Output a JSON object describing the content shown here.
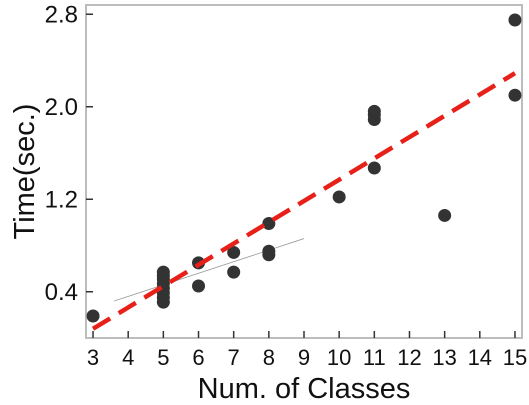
{
  "chart_data": {
    "type": "scatter",
    "title": "",
    "xlabel": "Num. of Classes",
    "ylabel": "Time(sec.)",
    "xlim": [
      2.8,
      15.2
    ],
    "ylim": [
      0.0,
      2.88
    ],
    "xticks": [
      3,
      4,
      5,
      6,
      7,
      8,
      9,
      10,
      11,
      12,
      13,
      14,
      15
    ],
    "yticks": [
      0.4,
      1.2,
      2.0,
      2.8
    ],
    "ytick_labels": [
      "0.4",
      "1.2",
      "2.0",
      "2.8"
    ],
    "grid": false,
    "legend": "none",
    "points": [
      {
        "x": 3,
        "y": 0.19
      },
      {
        "x": 5,
        "y": 0.31
      },
      {
        "x": 5,
        "y": 0.35
      },
      {
        "x": 5,
        "y": 0.39
      },
      {
        "x": 5,
        "y": 0.43
      },
      {
        "x": 5,
        "y": 0.47
      },
      {
        "x": 5,
        "y": 0.51
      },
      {
        "x": 5,
        "y": 0.54
      },
      {
        "x": 5,
        "y": 0.57
      },
      {
        "x": 6,
        "y": 0.45
      },
      {
        "x": 6,
        "y": 0.65
      },
      {
        "x": 7,
        "y": 0.57
      },
      {
        "x": 7,
        "y": 0.74
      },
      {
        "x": 8,
        "y": 0.72
      },
      {
        "x": 8,
        "y": 0.75
      },
      {
        "x": 8,
        "y": 0.99
      },
      {
        "x": 10,
        "y": 1.22
      },
      {
        "x": 11,
        "y": 1.47
      },
      {
        "x": 11,
        "y": 1.89
      },
      {
        "x": 11,
        "y": 1.93
      },
      {
        "x": 11,
        "y": 1.96
      },
      {
        "x": 13,
        "y": 1.06
      },
      {
        "x": 15,
        "y": 2.1
      },
      {
        "x": 15,
        "y": 2.75
      }
    ],
    "fit_line": {
      "x": [
        3,
        15
      ],
      "y": [
        0.08,
        2.29
      ],
      "style": "dashed",
      "color": "#e8201a"
    },
    "local_fit": {
      "x": [
        3.6,
        9.0
      ],
      "y": [
        0.32,
        0.86
      ],
      "color": "#9a9a9a"
    },
    "point_color": "#333333",
    "axis_color": "#bdbdbd"
  }
}
